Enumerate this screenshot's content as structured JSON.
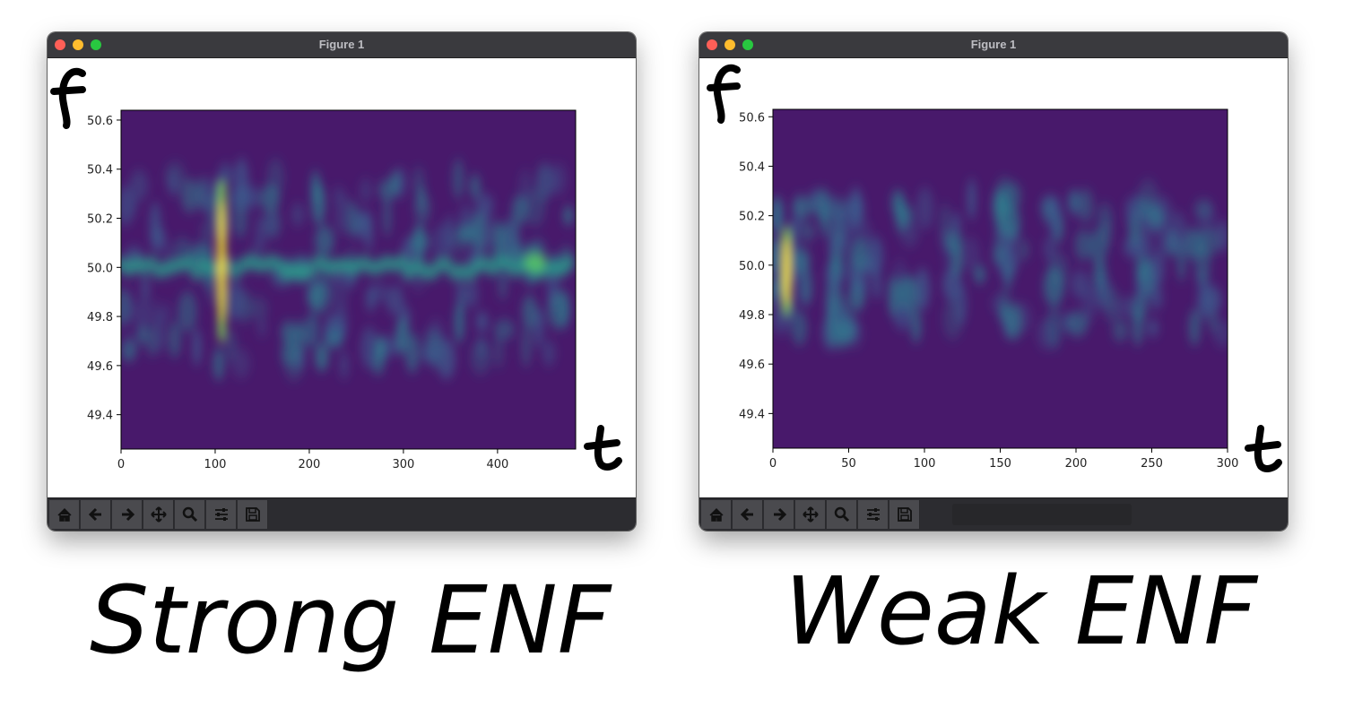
{
  "windows": [
    {
      "title": "Figure 1",
      "toolbar": [
        "home-icon",
        "back-icon",
        "forward-icon",
        "pan-icon",
        "zoom-icon",
        "configure-icon",
        "save-icon"
      ],
      "chart_data": {
        "type": "heatmap",
        "title": "",
        "xlabel": "t",
        "ylabel": "f",
        "xlim": [
          0,
          483
        ],
        "ylim": [
          49.26,
          50.64
        ],
        "xticks": [
          0,
          100,
          200,
          300,
          400
        ],
        "yticks": [
          49.4,
          49.6,
          49.8,
          50.0,
          50.2,
          50.4,
          50.6
        ],
        "colormap": "viridis",
        "features": [
          {
            "x": 107,
            "y": 49.7,
            "y2": 50.35,
            "intensity": 1.0
          },
          {
            "x": 440,
            "y": 50.02,
            "intensity": 0.7
          }
        ]
      }
    },
    {
      "title": "Figure 1",
      "toolbar": [
        "home-icon",
        "back-icon",
        "forward-icon",
        "pan-icon",
        "zoom-icon",
        "configure-icon",
        "save-icon"
      ],
      "chart_data": {
        "type": "heatmap",
        "title": "",
        "xlabel": "t",
        "ylabel": "f",
        "xlim": [
          0,
          300
        ],
        "ylim": [
          49.26,
          50.63
        ],
        "xticks": [
          0,
          50,
          100,
          150,
          200,
          250,
          300
        ],
        "yticks": [
          49.4,
          49.6,
          49.8,
          50.0,
          50.2,
          50.4,
          50.6
        ],
        "colormap": "viridis",
        "features": [
          {
            "x": 9,
            "y": 49.8,
            "y2": 50.15,
            "intensity": 1.0
          }
        ]
      }
    }
  ],
  "captions": [
    "Strong ENF",
    "Weak ENF"
  ],
  "colors": {
    "background": "#48196b",
    "band": "#2a9c8a",
    "peak": "#fde725"
  }
}
